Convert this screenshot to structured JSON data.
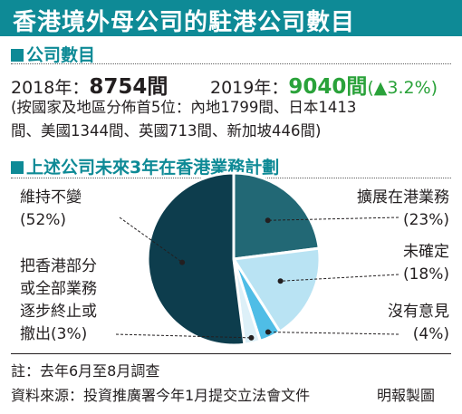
{
  "header": {
    "title": "香港境外母公司的駐港公司數目"
  },
  "section_count": {
    "heading": "公司數目",
    "y2018_label": "2018年：",
    "y2018_value": "8754間",
    "y2019_label": "2019年：",
    "y2019_value": "9040間",
    "y2019_change": "(▲3.2%)",
    "breakdown_line1": "(按國家及地區分佈首5位：內地1799間、日本1413",
    "breakdown_line2": "間、美國1344間、英國713間、新加坡446間)"
  },
  "section_plan": {
    "heading": "上述公司未來3年在香港業務計劃"
  },
  "chart_data": {
    "type": "pie",
    "title": "上述公司未來3年在香港業務計劃",
    "slices": [
      {
        "label": "擴展在港業務",
        "value": 23,
        "display": "(23%)",
        "color": "#226875"
      },
      {
        "label": "未確定",
        "value": 18,
        "display": "(18%)",
        "color": "#b9e3f3"
      },
      {
        "label": "沒有意見",
        "value": 4,
        "display": "(4%)",
        "color": "#4fbde6"
      },
      {
        "label": "把香港部分或全部業務逐步終止或撤出",
        "value": 3,
        "display": "(3%)",
        "color": "#ddf0f8"
      },
      {
        "label": "維持不變",
        "value": 52,
        "display": "(52%)",
        "color": "#0d3d4d"
      }
    ],
    "label_lines": {
      "keep": [
        "維持不變"
      ],
      "expand": [
        "擴展在港業務"
      ],
      "undecided": [
        "未確定"
      ],
      "no_opinion": [
        "沒有意見"
      ],
      "exit": [
        "把香港部分",
        "或全部業務",
        "逐步終止或",
        "撤出"
      ]
    }
  },
  "footer": {
    "note": "註：去年6月至8月調查",
    "source": "資料來源：投資推廣署今年1月提交立法會文件",
    "credit": "明報製圖"
  },
  "colors": {
    "accent": "#0e8a96",
    "increase": "#2aa23a"
  }
}
